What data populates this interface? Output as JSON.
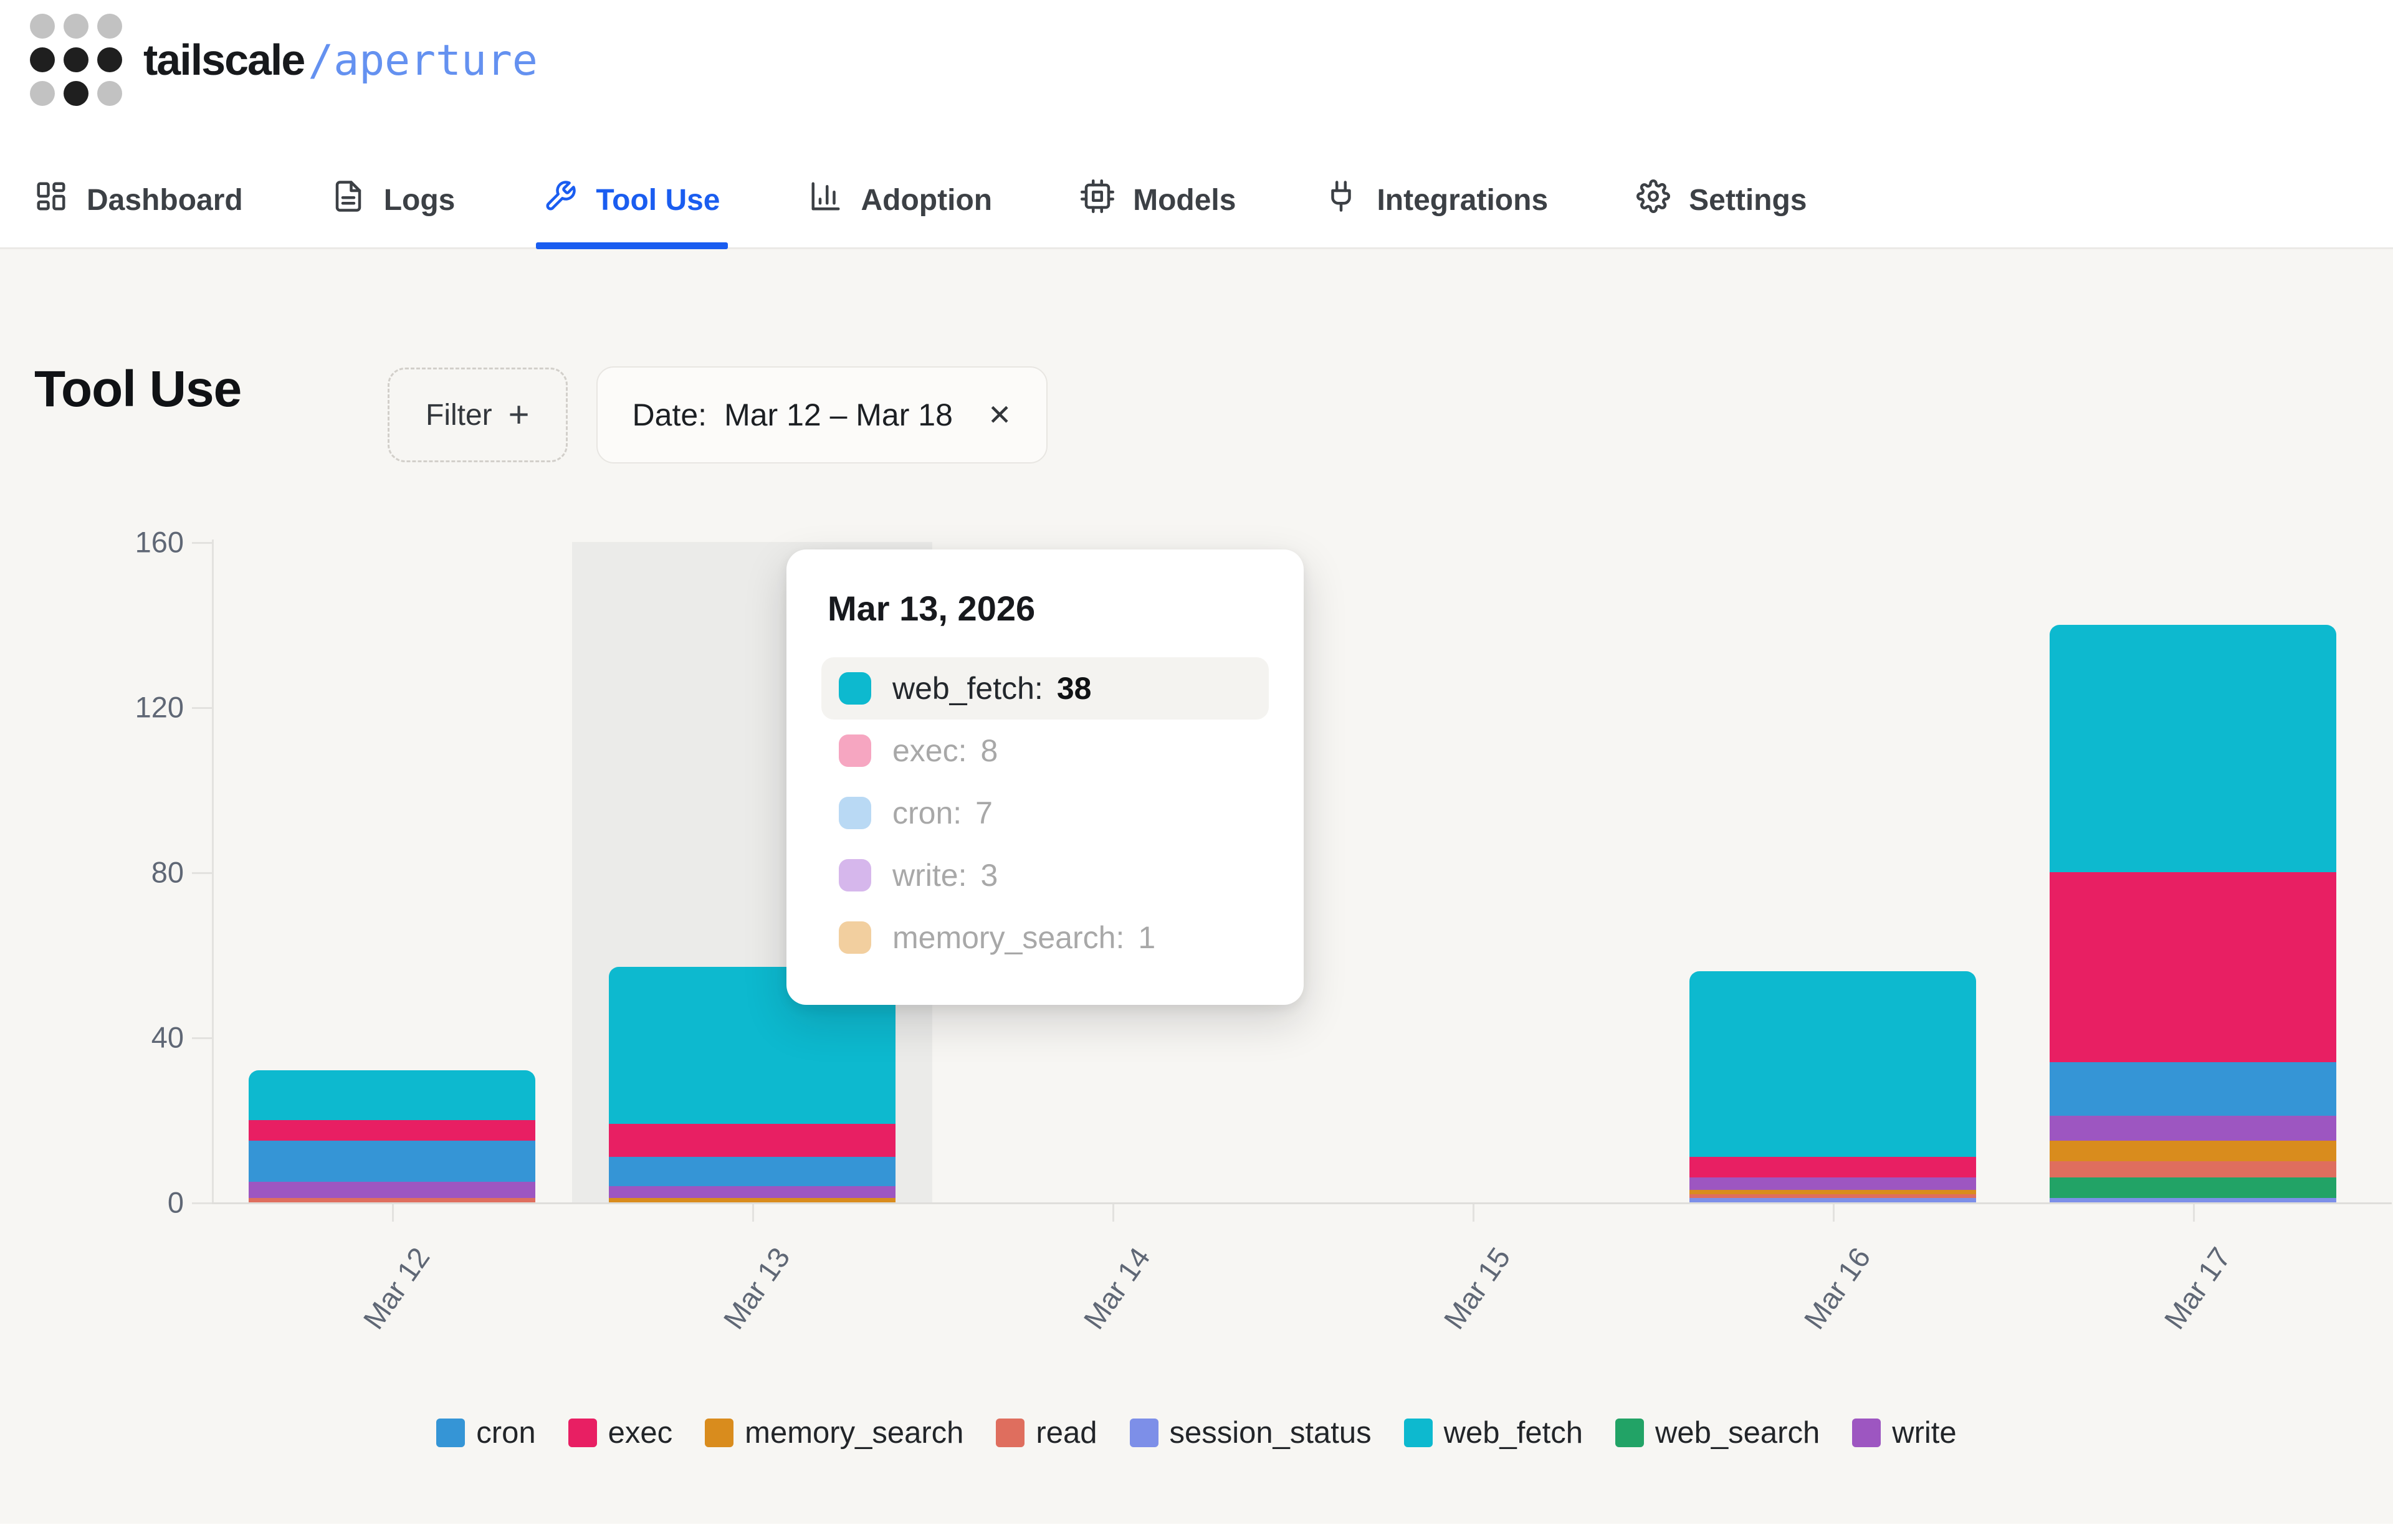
{
  "brand": {
    "name": "tailscale",
    "product": "/aperture"
  },
  "nav": {
    "items": [
      {
        "label": "Dashboard",
        "icon": "dashboard-icon",
        "active": false
      },
      {
        "label": "Logs",
        "icon": "logs-icon",
        "active": false
      },
      {
        "label": "Tool Use",
        "icon": "wrench-icon",
        "active": true
      },
      {
        "label": "Adoption",
        "icon": "bar-chart-icon",
        "active": false
      },
      {
        "label": "Models",
        "icon": "cpu-icon",
        "active": false
      },
      {
        "label": "Integrations",
        "icon": "plug-icon",
        "active": false
      },
      {
        "label": "Settings",
        "icon": "gear-icon",
        "active": false
      }
    ]
  },
  "page": {
    "title": "Tool Use"
  },
  "filters": {
    "filter_label": "Filter",
    "plus_icon": "+",
    "date_label": "Date:",
    "date_value": "Mar 12 – Mar 18",
    "close_icon": "✕"
  },
  "tooltip": {
    "title": "Mar 13, 2026",
    "rows": [
      {
        "label": "web_fetch",
        "value": 38,
        "swatch": "#0db9cf",
        "highlighted": true
      },
      {
        "label": "exec",
        "value": 8,
        "swatch": "#f6a6c1",
        "highlighted": false
      },
      {
        "label": "cron",
        "value": 7,
        "swatch": "#b9d9f4",
        "highlighted": false
      },
      {
        "label": "write",
        "value": 3,
        "swatch": "#d6b7ec",
        "highlighted": false
      },
      {
        "label": "memory_search",
        "value": 1,
        "swatch": "#f2cf9f",
        "highlighted": false
      }
    ]
  },
  "chart_data": {
    "type": "bar",
    "stacked": true,
    "title": "Tool Use by day",
    "categories": [
      "Mar 12",
      "Mar 13",
      "Mar 14",
      "Mar 15",
      "Mar 16",
      "Mar 17"
    ],
    "series": [
      {
        "name": "session_status",
        "color": "#7d8fe8",
        "values": [
          0,
          0,
          0,
          0,
          1,
          1
        ]
      },
      {
        "name": "web_search",
        "color": "#22a366",
        "values": [
          0,
          0,
          0,
          0,
          0,
          5
        ]
      },
      {
        "name": "read",
        "color": "#df6e5e",
        "values": [
          1,
          0,
          0,
          0,
          1,
          4
        ]
      },
      {
        "name": "memory_search",
        "color": "#d98c1d",
        "values": [
          0,
          1,
          0,
          0,
          1,
          5
        ]
      },
      {
        "name": "write",
        "color": "#9d56c1",
        "values": [
          4,
          3,
          0,
          0,
          3,
          6
        ]
      },
      {
        "name": "cron",
        "color": "#3595d6",
        "values": [
          10,
          7,
          0,
          0,
          0,
          13
        ]
      },
      {
        "name": "exec",
        "color": "#e81f63",
        "values": [
          5,
          8,
          0,
          0,
          5,
          46
        ]
      },
      {
        "name": "web_fetch",
        "color": "#0db9cf",
        "values": [
          12,
          38,
          0,
          0,
          45,
          60
        ]
      }
    ],
    "yticks": [
      0,
      40,
      80,
      120,
      160
    ],
    "ylim": [
      0,
      160
    ],
    "grid": false,
    "legend_position": "bottom",
    "legend_order": [
      "cron",
      "exec",
      "memory_search",
      "read",
      "session_status",
      "web_fetch",
      "web_search",
      "write"
    ],
    "highlighted_category": "Mar 13"
  },
  "colors": {
    "accent_blue": "#1a5df0",
    "brand_product_blue": "#6491f0",
    "page_bg": "#f7f6f3",
    "hover_band": "#ebebe9"
  }
}
